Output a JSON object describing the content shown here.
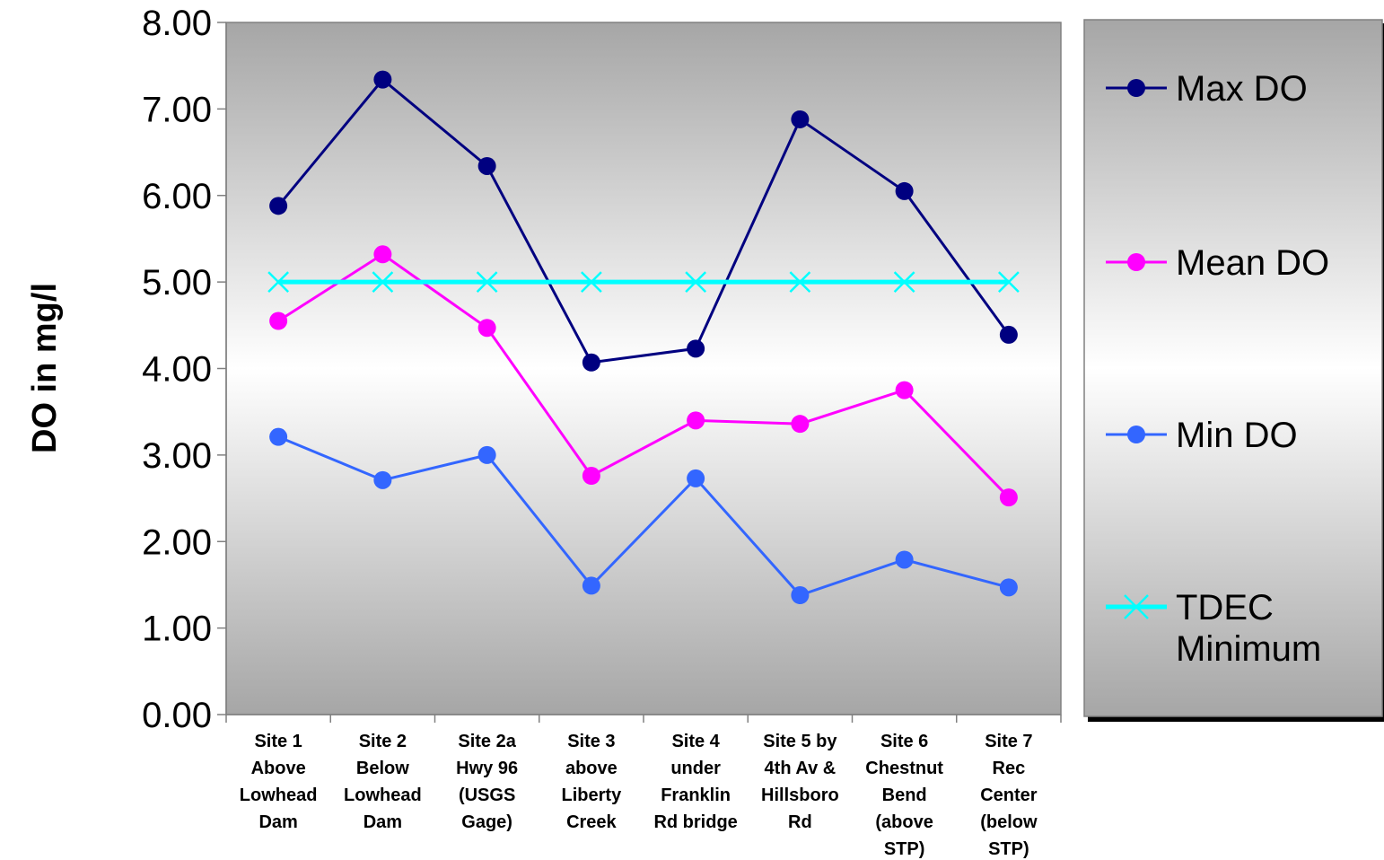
{
  "chart_data": {
    "type": "line",
    "title": "",
    "ylabel": "DO in mg/l",
    "xlabel": "",
    "ylim": [
      0,
      8
    ],
    "yticks": [
      "0.00",
      "1.00",
      "2.00",
      "3.00",
      "4.00",
      "5.00",
      "6.00",
      "7.00",
      "8.00"
    ],
    "categories": [
      "Site 1 Above Lowhead Dam",
      "Site 2 Below Lowhead Dam",
      "Site 2a Hwy 96 (USGS Gage)",
      "Site 3 above Liberty Creek",
      "Site 4 under Franklin Rd bridge",
      "Site 5 by 4th Av & Hillsboro Rd",
      "Site 6 Chestnut Bend (above STP)",
      "Site 7 Rec Center (below STP)"
    ],
    "category_lines": [
      [
        "Site 1",
        "Above",
        "Lowhead",
        "Dam"
      ],
      [
        "Site 2",
        "Below",
        "Lowhead",
        "Dam"
      ],
      [
        "Site 2a",
        "Hwy 96",
        "(USGS",
        "Gage)"
      ],
      [
        "Site 3",
        "above",
        "Liberty",
        "Creek"
      ],
      [
        "Site 4",
        "under",
        "Franklin",
        "Rd bridge"
      ],
      [
        "Site 5 by",
        "4th Av &",
        "Hillsboro",
        "Rd"
      ],
      [
        "Site 6",
        "Chestnut",
        "Bend",
        "(above",
        "STP)"
      ],
      [
        "Site 7",
        "Rec",
        "Center",
        "(below",
        "STP)"
      ]
    ],
    "series": [
      {
        "name": "Max DO",
        "color": "#000080",
        "marker": "circle",
        "values": [
          5.88,
          7.34,
          6.34,
          4.07,
          4.23,
          6.88,
          6.05,
          4.39
        ]
      },
      {
        "name": " Mean DO",
        "color": "#ff00ff",
        "marker": "circle",
        "values": [
          4.55,
          5.32,
          4.47,
          2.76,
          3.4,
          3.36,
          3.75,
          2.51
        ]
      },
      {
        "name": "Min DO",
        "color": "#3366ff",
        "marker": "circle",
        "values": [
          3.21,
          2.71,
          3.0,
          1.49,
          2.73,
          1.38,
          1.79,
          1.47
        ]
      },
      {
        "name": "TDEC Minimum",
        "name_lines": [
          "TDEC",
          "Minimum"
        ],
        "color": "#00ffff",
        "marker": "x",
        "values": [
          5.0,
          5.0,
          5.0,
          5.0,
          5.0,
          5.0,
          5.0,
          5.0
        ]
      }
    ],
    "grid": false,
    "legend_position": "right"
  }
}
